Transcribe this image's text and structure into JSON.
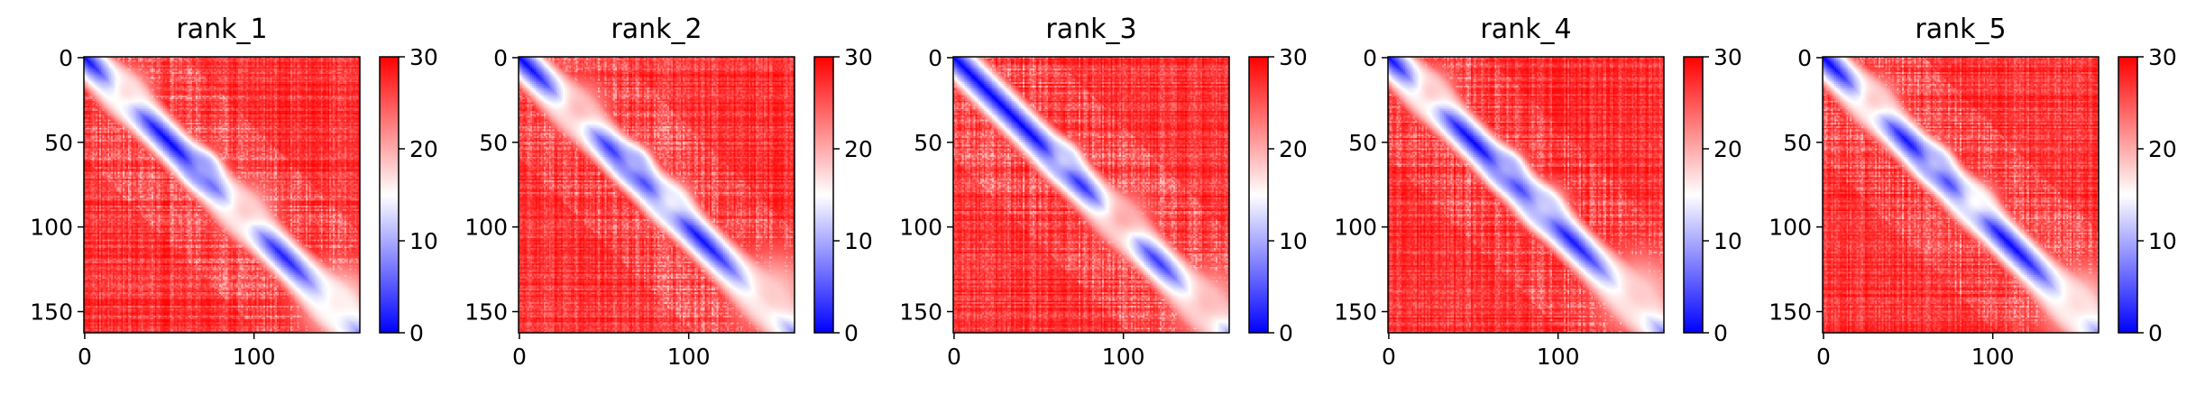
{
  "figure": {
    "colors": {
      "low": "#0000ff",
      "mid": "#ffffff",
      "high": "#ff0000"
    }
  },
  "chart_data": [
    {
      "type": "heatmap",
      "title": "rank_1",
      "size": 163,
      "xticks": [
        0,
        100
      ],
      "yticks": [
        0,
        50,
        100,
        150
      ],
      "colorbar": {
        "min": 0,
        "max": 30,
        "ticks": [
          0,
          10,
          20,
          30
        ]
      },
      "diagonal_value": 0,
      "background_value": 30,
      "features": [
        {
          "row": 65,
          "col": 70,
          "value": 9,
          "spread": 8
        },
        {
          "row": 90,
          "col": 95,
          "value": 18,
          "spread": 14
        },
        {
          "row": 145,
          "col": 150,
          "value": 16,
          "spread": 18
        },
        {
          "row": 20,
          "col": 25,
          "value": 17,
          "spread": 12
        }
      ]
    },
    {
      "type": "heatmap",
      "title": "rank_2",
      "size": 163,
      "xticks": [
        0,
        100
      ],
      "yticks": [
        0,
        50,
        100,
        150
      ],
      "colorbar": {
        "min": 0,
        "max": 30,
        "ticks": [
          0,
          10,
          20,
          30
        ]
      },
      "diagonal_value": 0,
      "background_value": 30,
      "features": [
        {
          "row": 62,
          "col": 68,
          "value": 10,
          "spread": 8
        },
        {
          "row": 85,
          "col": 90,
          "value": 14,
          "spread": 10
        },
        {
          "row": 140,
          "col": 150,
          "value": 18,
          "spread": 20
        },
        {
          "row": 30,
          "col": 35,
          "value": 19,
          "spread": 14
        }
      ]
    },
    {
      "type": "heatmap",
      "title": "rank_3",
      "size": 163,
      "xticks": [
        0,
        100
      ],
      "yticks": [
        0,
        50,
        100,
        150
      ],
      "colorbar": {
        "min": 0,
        "max": 30,
        "ticks": [
          0,
          10,
          20,
          30
        ]
      },
      "diagonal_value": 0,
      "background_value": 30,
      "features": [
        {
          "row": 60,
          "col": 65,
          "value": 12,
          "spread": 8
        },
        {
          "row": 95,
          "col": 100,
          "value": 20,
          "spread": 14
        },
        {
          "row": 145,
          "col": 150,
          "value": 19,
          "spread": 18
        }
      ]
    },
    {
      "type": "heatmap",
      "title": "rank_4",
      "size": 163,
      "xticks": [
        0,
        100
      ],
      "yticks": [
        0,
        50,
        100,
        150
      ],
      "colorbar": {
        "min": 0,
        "max": 30,
        "ticks": [
          0,
          10,
          20,
          30
        ]
      },
      "diagonal_value": 0,
      "background_value": 30,
      "features": [
        {
          "row": 65,
          "col": 70,
          "value": 10,
          "spread": 8
        },
        {
          "row": 88,
          "col": 92,
          "value": 12,
          "spread": 10
        },
        {
          "row": 140,
          "col": 148,
          "value": 18,
          "spread": 20
        },
        {
          "row": 20,
          "col": 25,
          "value": 18,
          "spread": 12
        }
      ]
    },
    {
      "type": "heatmap",
      "title": "rank_5",
      "size": 163,
      "xticks": [
        0,
        100
      ],
      "yticks": [
        0,
        50,
        100,
        150
      ],
      "colorbar": {
        "min": 0,
        "max": 30,
        "ticks": [
          0,
          10,
          20,
          30
        ]
      },
      "diagonal_value": 0,
      "background_value": 30,
      "features": [
        {
          "row": 62,
          "col": 66,
          "value": 11,
          "spread": 8
        },
        {
          "row": 85,
          "col": 90,
          "value": 15,
          "spread": 10
        },
        {
          "row": 145,
          "col": 150,
          "value": 17,
          "spread": 18
        },
        {
          "row": 25,
          "col": 30,
          "value": 18,
          "spread": 12
        }
      ]
    }
  ]
}
